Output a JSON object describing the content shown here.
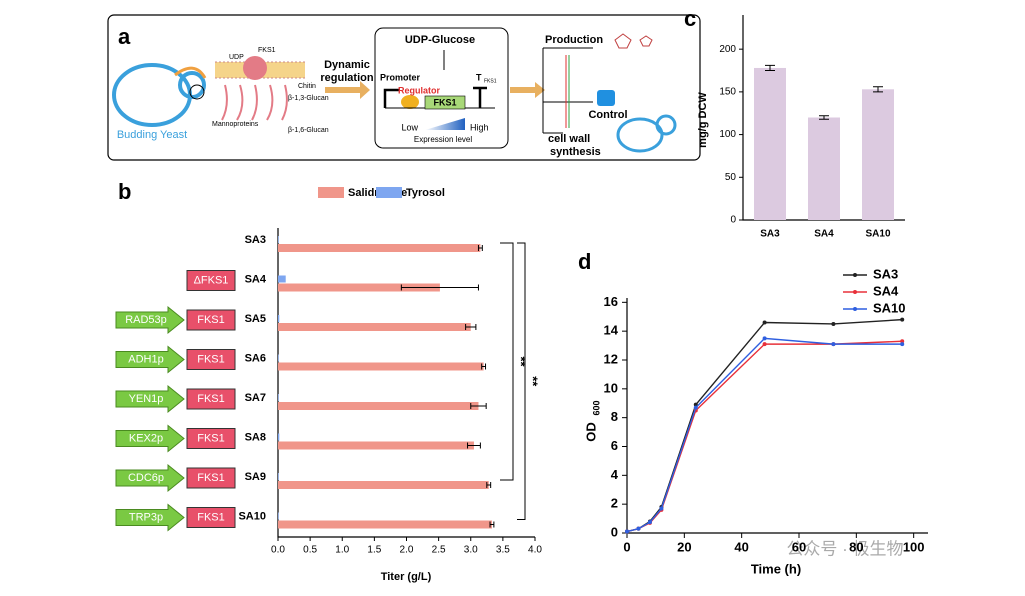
{
  "panels": [
    "a",
    "b",
    "c",
    "d"
  ],
  "watermark": "公众号 · 极生物",
  "diagram": {
    "yeast": "Budding Yeast",
    "udp": "UDP",
    "fks1_protein": "FKS1",
    "chitin": "Chitin",
    "b13": "β-1,3-Glucan",
    "mannoproteins": "Mannoproteins",
    "b16": "β-1,6-Glucan",
    "dynamic": "Dynamic",
    "regulation": "regulation",
    "udp_glucose": "UDP-Glucose",
    "promoter": "Promoter",
    "regulator": "Regulator",
    "gene": "FKS1",
    "terminator": "T",
    "terminator_sub": "FKS1",
    "low": "Low",
    "high": "High",
    "expression": "Expression level",
    "production": "Production",
    "control": "Control",
    "cell_wall": "cell wall",
    "synthesis": "synthesis"
  },
  "chart_data": [
    {
      "type": "hbar",
      "categories": [
        "SA3",
        "SA4",
        "SA5",
        "SA6",
        "SA7",
        "SA8",
        "SA9",
        "SA10"
      ],
      "series": [
        {
          "name": "Salidroside",
          "color": "#f0968a",
          "values": [
            3.15,
            2.52,
            3.0,
            3.2,
            3.12,
            3.05,
            3.28,
            3.33
          ],
          "errors": [
            0.03,
            0.6,
            0.08,
            0.03,
            0.12,
            0.1,
            0.03,
            0.03
          ]
        },
        {
          "name": "Tyrosol",
          "color": "#7ea6f0",
          "values": [
            0.01,
            0.12,
            0.02,
            0.01,
            0.01,
            0.02,
            0.01,
            0.01
          ]
        }
      ],
      "constructs": [
        null,
        {
          "gene": "ΔFKS1"
        },
        {
          "promoter": "RAD53p",
          "gene": "FKS1"
        },
        {
          "promoter": "ADH1p",
          "gene": "FKS1"
        },
        {
          "promoter": "YEN1p",
          "gene": "FKS1"
        },
        {
          "promoter": "KEX2p",
          "gene": "FKS1"
        },
        {
          "promoter": "CDC6p",
          "gene": "FKS1"
        },
        {
          "promoter": "TRP3p",
          "gene": "FKS1"
        }
      ],
      "significance": [
        "**",
        "**"
      ],
      "xlim": [
        0,
        4
      ],
      "xticks": [
        {
          "value": 0,
          "label": "0.0"
        },
        0.5,
        {
          "value": 1,
          "label": "1.0"
        },
        1.5,
        {
          "value": 2,
          "label": "2.0"
        },
        2.5,
        {
          "value": 3,
          "label": "3.0"
        },
        3.5,
        {
          "value": 4,
          "label": "4.0"
        }
      ],
      "xlabel": "Titer (g/L)"
    },
    {
      "type": "bar",
      "categories": [
        "SA3",
        "SA4",
        "SA10"
      ],
      "values": [
        178,
        120,
        153
      ],
      "errors": [
        3,
        2,
        3
      ],
      "color": "#dccae0",
      "ylim": [
        0,
        240
      ],
      "yticks": [
        0,
        50,
        100,
        150,
        200
      ],
      "ylabel": "mg/g DCW"
    },
    {
      "type": "line",
      "x": [
        0,
        4,
        8,
        12,
        24,
        48,
        72,
        96
      ],
      "series": [
        {
          "name": "SA3",
          "color": "#222222",
          "values": [
            0.1,
            0.3,
            0.8,
            1.8,
            8.9,
            14.6,
            14.5,
            14.8
          ]
        },
        {
          "name": "SA4",
          "color": "#e8303a",
          "values": [
            0.1,
            0.3,
            0.7,
            1.6,
            8.5,
            13.1,
            13.1,
            13.3
          ]
        },
        {
          "name": "SA10",
          "color": "#2f5fe0",
          "values": [
            0.1,
            0.3,
            0.75,
            1.7,
            8.7,
            13.5,
            13.1,
            13.1
          ]
        }
      ],
      "xlim": [
        0,
        105
      ],
      "xticks": [
        0,
        20,
        40,
        60,
        80,
        100
      ],
      "ylim": [
        0,
        16.3
      ],
      "yticks": [
        0,
        2,
        4,
        6,
        8,
        10,
        12,
        14,
        16
      ],
      "xlabel": "Time (h)",
      "ylabel": "OD",
      "ylabel_sub": "600",
      "legend": "top-right"
    }
  ]
}
